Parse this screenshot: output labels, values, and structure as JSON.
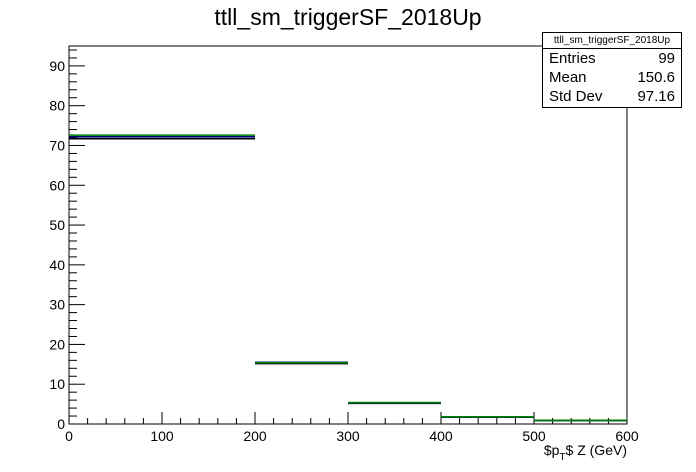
{
  "chart_data": {
    "type": "histogram",
    "title": "ttll_sm_triggerSF_2018Up",
    "xlabel": "$p_{T}$ Z (GeV)",
    "ylabel": "",
    "xlim": [
      0,
      600
    ],
    "ylim": [
      0,
      95
    ],
    "x_ticks": [
      0,
      100,
      200,
      300,
      400,
      500,
      600
    ],
    "y_ticks": [
      0,
      10,
      20,
      30,
      40,
      50,
      60,
      70,
      80,
      90
    ],
    "grid": false,
    "stats": {
      "name": "ttll_sm_triggerSF_2018Up",
      "entries_label": "Entries",
      "entries": "99",
      "mean_label": "Mean",
      "mean": "150.6",
      "stddev_label": "Std Dev",
      "stddev": "97.16"
    },
    "series": [
      {
        "color": "#000000",
        "bins": [
          {
            "x0": 0,
            "x1": 200,
            "y": 71.7
          },
          {
            "x0": 200,
            "x1": 300,
            "y": 15.2
          },
          {
            "x0": 300,
            "x1": 400,
            "y": 5.2
          },
          {
            "x0": 400,
            "x1": 500,
            "y": 1.7
          },
          {
            "x0": 500,
            "x1": 600,
            "y": 0.9
          }
        ]
      },
      {
        "color": "#000080",
        "bins": [
          {
            "x0": 0,
            "x1": 200,
            "y": 72.2
          },
          {
            "x0": 200,
            "x1": 300,
            "y": 15.5
          },
          {
            "x0": 300,
            "x1": 400,
            "y": 5.3
          },
          {
            "x0": 400,
            "x1": 500,
            "y": 1.7
          },
          {
            "x0": 500,
            "x1": 600,
            "y": 0.9
          }
        ]
      },
      {
        "color": "#008000",
        "bins": [
          {
            "x0": 0,
            "x1": 200,
            "y": 72.6
          },
          {
            "x0": 200,
            "x1": 300,
            "y": 15.4
          },
          {
            "x0": 300,
            "x1": 400,
            "y": 5.4
          },
          {
            "x0": 400,
            "x1": 500,
            "y": 1.8
          },
          {
            "x0": 500,
            "x1": 600,
            "y": 0.9
          }
        ]
      }
    ]
  }
}
